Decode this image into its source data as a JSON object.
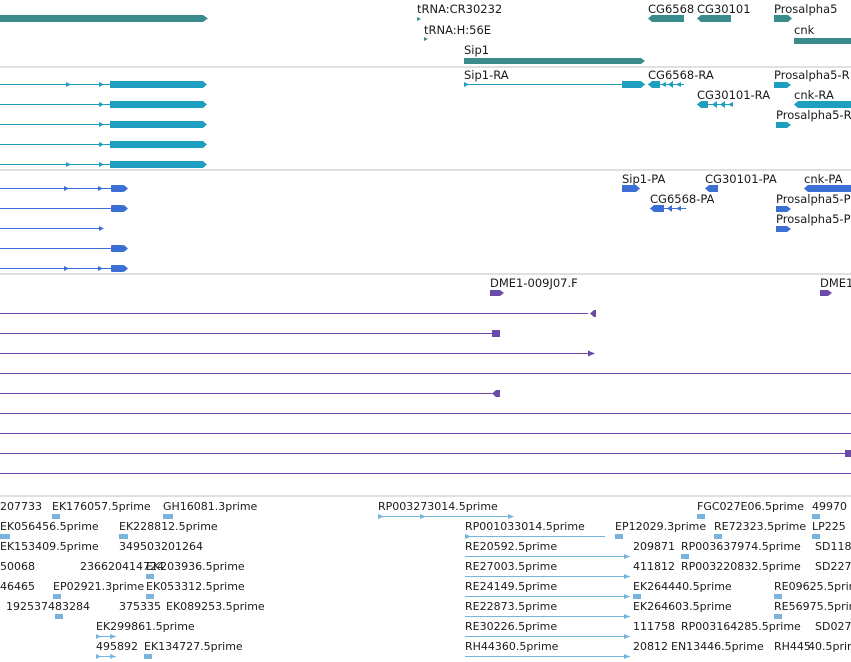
{
  "colors": {
    "gene": "#3a8c8c",
    "mrna": "#1f9fbf",
    "cds": "#3b6fd4",
    "cdna": "#6b4aa8",
    "est": "#78b4dc",
    "separator": "#b8c4c8"
  },
  "tracks": {
    "genes": {
      "labels": {
        "tRNA_CR30232": "tRNA:CR30232",
        "tRNA_H56E": "tRNA:H:56E",
        "Sip1": "Sip1",
        "CG6568": "CG6568",
        "CG30101": "CG30101",
        "Prosalpha5": "Prosalpha5",
        "cnk": "cnk"
      }
    },
    "transcripts": {
      "labels": {
        "Sip1_RA": "Sip1-RA",
        "CG6568_RA": "CG6568-RA",
        "CG30101_RA": "CG30101-RA",
        "Prosalpha5_R1": "Prosalpha5-R",
        "cnk_RA": "cnk-RA",
        "Prosalpha5_R2": "Prosalpha5-R"
      }
    },
    "proteins": {
      "labels": {
        "Sip1_PA": "Sip1-PA",
        "CG30101_PA": "CG30101-PA",
        "cnk_PA": "cnk-PA",
        "CG6568_PA": "CG6568-PA",
        "Prosalpha5_P1": "Prosalpha5-P",
        "Prosalpha5_P2": "Prosalpha5-P"
      }
    },
    "cdna": {
      "labels": {
        "DME1_009J07": "DME1-009J07.F",
        "DME1_2": "DME1"
      }
    },
    "ests": {
      "labels": {
        "r1a": "207733",
        "r1b": "EK176057.5prime",
        "r1c": "GH16081.3prime",
        "r1d": "RP003273014.5prime",
        "r1e": "FGC027E06.5prime",
        "r1f": "49970",
        "r2a": "EK056456.5prime",
        "r2b": "EK228812.5prime",
        "r2c": "RP001033014.5prime",
        "r2d": "EP12029.3prime",
        "r2e": "RE72323.5prime",
        "r2f": "LP225",
        "r3a": "EK153409.5prime",
        "r3b": "349503201264",
        "r3c": "RE20592.5prime",
        "r3d": "209871",
        "r3e": "RP003637974.5prime",
        "r3f": "SD118",
        "r4a": "50068",
        "r4b": "236620414724",
        "r4c": "EK203936.5prime",
        "r4d": "RE27003.5prime",
        "r4e": "411812",
        "r4f": "RP003220832.5prime",
        "r4g": "SD227",
        "r5a": "46465",
        "r5b": "EP02921.3prime",
        "r5c": "EK053312.5prime",
        "r5d": "RE24149.5prime",
        "r5e": "EK264440.5prime",
        "r5f": "RE09625.5prime",
        "r6a": "192537483284",
        "r6b": "375335",
        "r6c": "EK089253.5prime",
        "r6d": "RE22873.5prime",
        "r6e": "EK264603.5prime",
        "r6f": "RE56975.5prime",
        "r7a": "EK299861.5prime",
        "r7b": "RE30226.5prime",
        "r7c": "111758",
        "r7d": "RP003164285.5prime",
        "r7e": "SD027",
        "r8a": "495892",
        "r8b": "EK134727.5prime",
        "r8c": "RH44360.5prime",
        "r8d": "20812",
        "r8e": "EN13446.5prime",
        "r8f": "RH445",
        "r8g": "40.5prime"
      }
    }
  }
}
